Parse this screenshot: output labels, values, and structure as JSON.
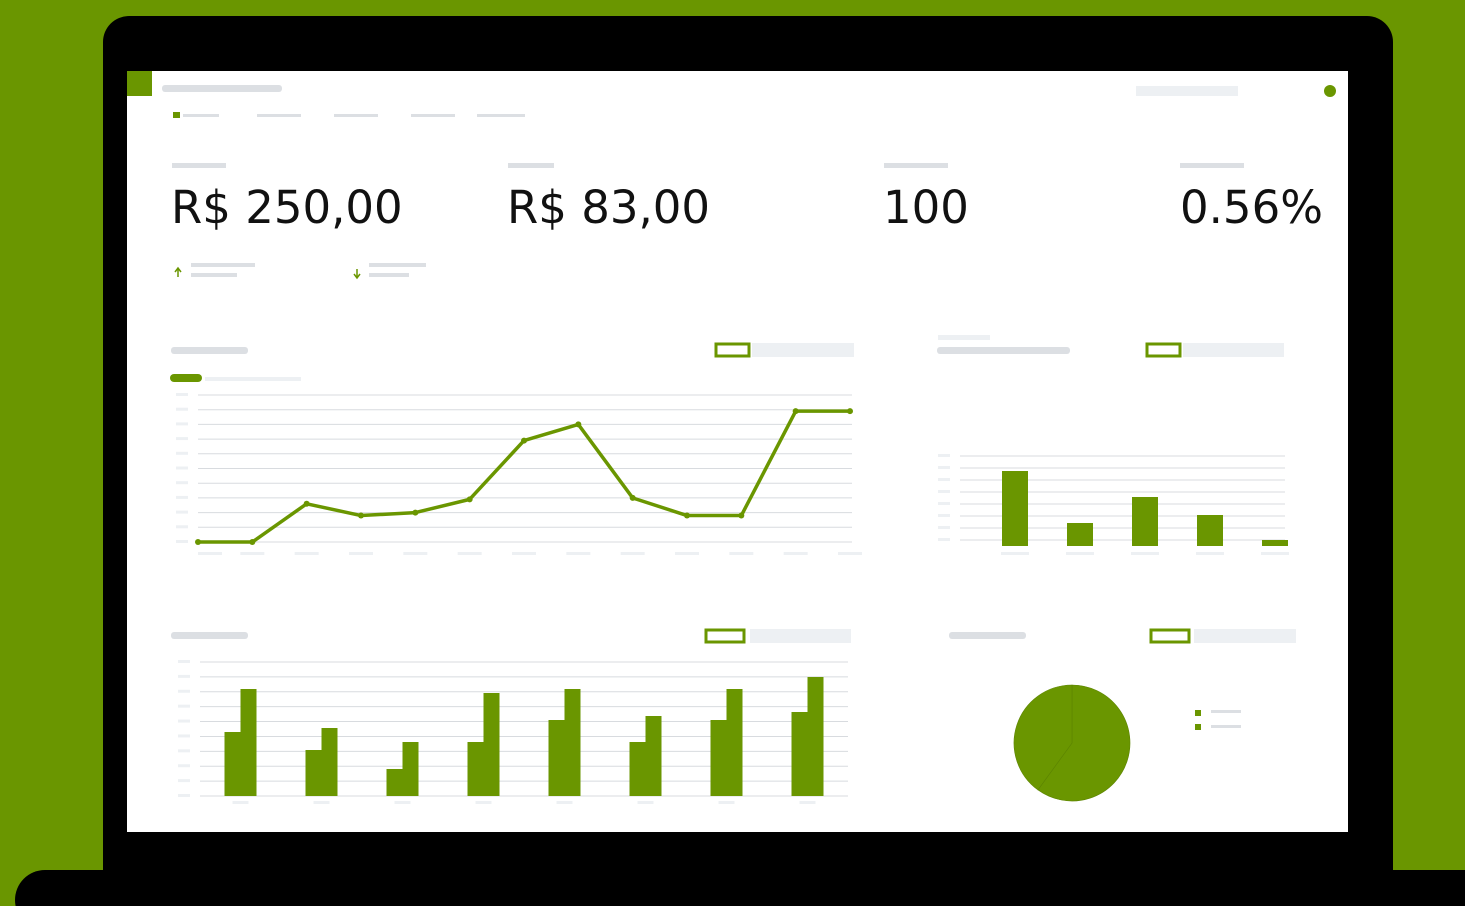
{
  "kpis": [
    "R$ 250,00",
    "R$ 83,00",
    "100",
    "0.56%"
  ],
  "chart_data": [
    {
      "type": "line",
      "color": "#6a9600",
      "ylim": [
        0,
        10
      ],
      "values": [
        0,
        0,
        2.6,
        1.8,
        2,
        2.9,
        6.9,
        8,
        3,
        1.8,
        1.8,
        8.9,
        8.9
      ]
    },
    {
      "type": "bar",
      "color": "#6a9600",
      "ylim": [
        0,
        90
      ],
      "values": [
        75,
        23,
        49,
        31,
        6
      ]
    },
    {
      "type": "grouped-bar",
      "ylim": [
        0,
        134
      ],
      "series": [
        {
          "color": "#6a9600",
          "values": [
            64,
            46,
            27,
            54,
            76,
            54,
            76,
            84
          ]
        },
        {
          "color": "#6a9600",
          "values": [
            107,
            68,
            54,
            103,
            107,
            80,
            107,
            119
          ]
        }
      ]
    },
    {
      "type": "pie",
      "colors": [
        "#6a9600",
        "#6a9600"
      ],
      "values": [
        60,
        40
      ]
    }
  ]
}
